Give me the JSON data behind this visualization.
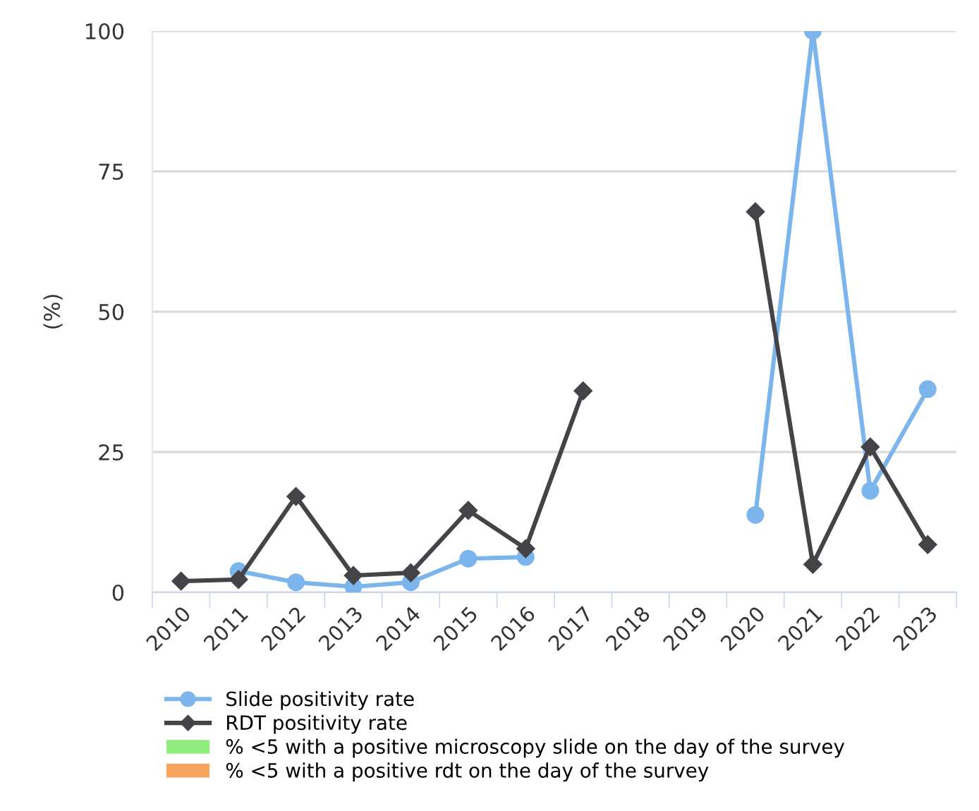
{
  "chart_data": {
    "type": "line",
    "ylabel": "(%)",
    "categories": [
      "2010",
      "2011",
      "2012",
      "2013",
      "2014",
      "2015",
      "2016",
      "2017",
      "2018",
      "2019",
      "2020",
      "2021",
      "2022",
      "2023"
    ],
    "series": [
      {
        "name": "Slide positivity rate",
        "color": "#7cb5ec",
        "marker": "circle",
        "values": [
          null,
          3.8,
          1.8,
          1.0,
          1.8,
          6.0,
          6.3,
          null,
          null,
          null,
          13.8,
          100,
          18.1,
          36.2
        ]
      },
      {
        "name": "RDT positivity rate",
        "color": "#434348",
        "marker": "diamond",
        "values": [
          2.0,
          2.3,
          17.1,
          3.0,
          3.5,
          14.6,
          7.8,
          35.9,
          null,
          null,
          67.8,
          5.0,
          25.9,
          8.5
        ]
      },
      {
        "name": "% <5 with a positive microscopy slide on the day of the survey",
        "color": "#90ed7d",
        "type": "bar",
        "values": [
          null,
          null,
          null,
          null,
          null,
          null,
          null,
          null,
          null,
          null,
          null,
          null,
          null,
          null
        ]
      },
      {
        "name": "% <5 with a positive rdt on the day of the survey",
        "color": "#f7a35c",
        "type": "bar",
        "values": [
          null,
          null,
          null,
          null,
          null,
          null,
          null,
          null,
          null,
          null,
          null,
          null,
          null,
          null
        ]
      }
    ],
    "ylim": [
      0,
      100
    ],
    "yticks": [
      0,
      25,
      50,
      75,
      100
    ],
    "grid": "y",
    "legend": "bottom"
  }
}
